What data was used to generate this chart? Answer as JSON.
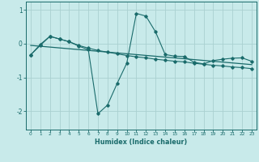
{
  "background_color": "#c8eaea",
  "line_color": "#1a6b6b",
  "grid_color": "#aad0d0",
  "xlabel": "Humidex (Indice chaleur)",
  "x_ticks": [
    0,
    1,
    2,
    3,
    4,
    5,
    6,
    7,
    8,
    9,
    10,
    11,
    12,
    13,
    14,
    15,
    16,
    17,
    18,
    19,
    20,
    21,
    22,
    23
  ],
  "y_ticks": [
    -2,
    -1,
    0,
    1
  ],
  "xlim": [
    -0.5,
    23.5
  ],
  "ylim": [
    -2.55,
    1.25
  ],
  "series1_x": [
    0,
    1,
    2,
    3,
    4,
    5,
    6,
    7,
    8,
    9,
    10,
    11,
    12,
    13,
    14,
    15,
    16,
    17,
    18,
    19,
    20,
    21,
    22,
    23
  ],
  "series1_y": [
    -0.33,
    -0.02,
    0.22,
    0.14,
    0.06,
    -0.05,
    -0.13,
    -0.2,
    -0.25,
    -0.3,
    -0.35,
    -0.39,
    -0.42,
    -0.46,
    -0.49,
    -0.52,
    -0.54,
    -0.58,
    -0.61,
    -0.64,
    -0.66,
    -0.69,
    -0.71,
    -0.74
  ],
  "series2_x": [
    0,
    1,
    2,
    3,
    4,
    5,
    6,
    7,
    8,
    9,
    10,
    11,
    12,
    13,
    14,
    15,
    16,
    17,
    18,
    19,
    20,
    21,
    22,
    23
  ],
  "series2_y": [
    -0.33,
    -0.05,
    0.22,
    0.14,
    0.06,
    -0.07,
    -0.18,
    -2.08,
    -1.82,
    -1.18,
    -0.58,
    0.9,
    0.82,
    0.35,
    -0.32,
    -0.37,
    -0.38,
    -0.55,
    -0.6,
    -0.5,
    -0.46,
    -0.43,
    -0.42,
    -0.52
  ],
  "trend_x": [
    0,
    23
  ],
  "trend_y_start": -0.05,
  "trend_y_end": -0.62
}
